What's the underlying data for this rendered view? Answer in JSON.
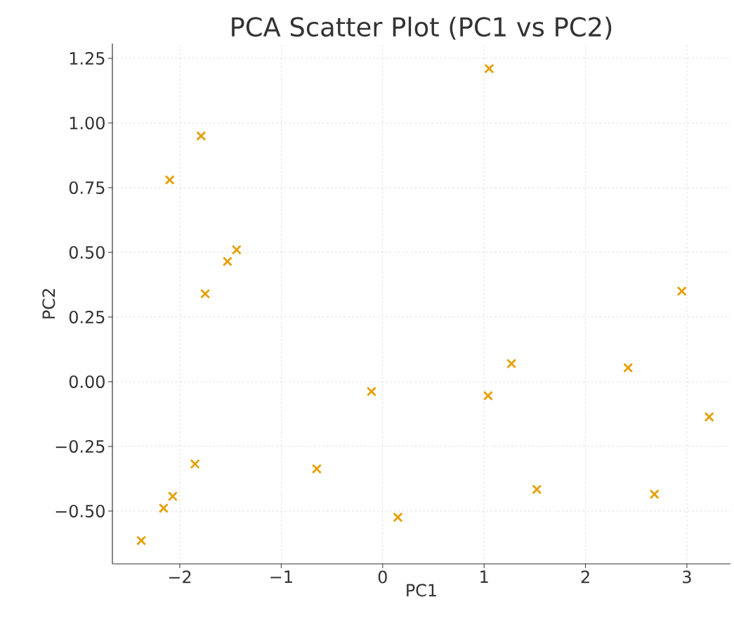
{
  "chart_data": {
    "type": "scatter",
    "title": "PCA Scatter Plot (PC1 vs PC2)",
    "xlabel": "PC1",
    "ylabel": "PC2",
    "x": [
      1.05,
      -1.79,
      -2.1,
      -1.44,
      -1.53,
      -1.75,
      2.95,
      1.27,
      2.42,
      -0.11,
      1.04,
      3.22,
      -1.85,
      -0.65,
      1.52,
      2.68,
      -2.07,
      -2.16,
      0.15,
      -2.38
    ],
    "values": [
      1.21,
      0.95,
      0.78,
      0.51,
      0.465,
      0.34,
      0.35,
      0.07,
      0.054,
      -0.038,
      -0.054,
      -0.136,
      -0.318,
      -0.337,
      -0.416,
      -0.435,
      -0.443,
      -0.489,
      -0.524,
      -0.614
    ],
    "color": "#e69f00",
    "marker": "cross",
    "grid": true,
    "xlim": [
      -2.665,
      3.43
    ],
    "ylim": [
      -0.704,
      1.307
    ],
    "xticks": [
      {
        "value": -2,
        "label": "−2"
      },
      {
        "value": -1,
        "label": "−1"
      },
      0,
      1,
      2,
      3
    ],
    "yticks": [
      {
        "value": -0.5,
        "label": "−0.50"
      },
      {
        "value": -0.25,
        "label": "−0.25"
      },
      {
        "value": 0,
        "label": "0.00"
      },
      0.25,
      {
        "value": 0.5,
        "label": "0.50"
      },
      0.75,
      {
        "value": 1,
        "label": "1.00"
      },
      1.25
    ]
  }
}
